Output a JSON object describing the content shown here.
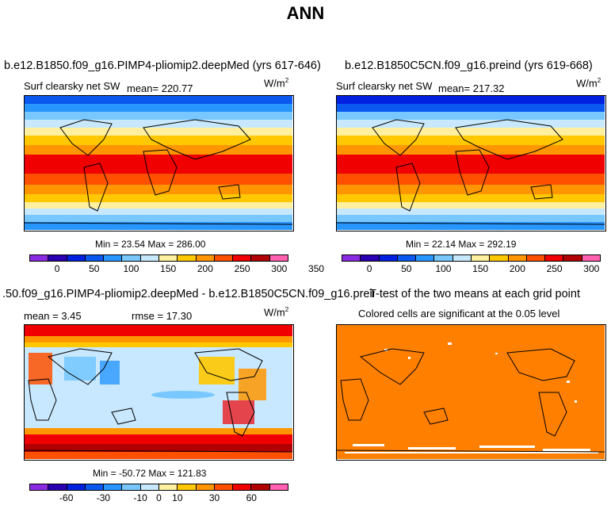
{
  "title": "ANN",
  "units": "W/m",
  "units_sup": "2",
  "panels": {
    "top_left": {
      "title": "b.e12.B1850.f09_g16.PIMP4-pliomip2.deepMed (yrs 617-646)",
      "variable": "Surf clearsky net SW",
      "mean_label": "mean= 220.77",
      "minmax": "Min =  23.54 Max = 286.00"
    },
    "top_right": {
      "title": "b.e12.B1850C5CN.f09_g16.preind (yrs 619-668)",
      "variable": "Surf clearsky net SW",
      "mean_label": "mean= 217.32",
      "minmax": "Min =  22.14 Max = 292.19"
    },
    "bottom_left": {
      "title": ".50.f09_g16.PIMP4-pliomip2.deepMed - b.e12.B1850C5CN.f09_g16.preind",
      "mean_label": "mean =    3.45",
      "rmse_label": "rmse =  17.30",
      "minmax": "Min = -50.72 Max = 121.83"
    },
    "bottom_right": {
      "title": "T-test of the two means at each grid point",
      "subtitle": "Colored cells are significant at the 0.05 level"
    }
  },
  "colorbar_abs": {
    "colors": [
      "#8a2be2",
      "#2a00b0",
      "#0020e0",
      "#0a58f0",
      "#2896ff",
      "#78c8ff",
      "#c8e8ff",
      "#fff0a0",
      "#ffc800",
      "#ff9600",
      "#ff5000",
      "#f00000",
      "#b00000",
      "#ff60b0"
    ],
    "tick_labels": [
      "0",
      "50",
      "100",
      "150",
      "200",
      "250",
      "300",
      "350"
    ],
    "tick_positions": [
      1.5,
      3.5,
      5.5,
      7.5,
      9.5,
      11.5,
      13.5,
      15.5
    ]
  },
  "colorbar_diff": {
    "colors": [
      "#8a2be2",
      "#2a00b0",
      "#0020e0",
      "#0a58f0",
      "#2896ff",
      "#78c8ff",
      "#c8e8ff",
      "#fff0a0",
      "#ffc800",
      "#ff9600",
      "#ff5000",
      "#f00000",
      "#b00000",
      "#ff60b0"
    ],
    "tick_labels": [
      "-60",
      "-30",
      "-10",
      "0",
      "10",
      "30",
      "60"
    ],
    "tick_positions": [
      2,
      4,
      6,
      7,
      8,
      10,
      12
    ]
  },
  "chart_data": [
    {
      "type": "heatmap",
      "title": "b.e12.B1850.f09_g16.PIMP4-pliomip2.deepMed (yrs 617-646)",
      "variable": "Surf clearsky net SW",
      "units": "W/m2",
      "mean": 220.77,
      "min": 23.54,
      "max": 286.0,
      "levels": [
        0,
        25,
        50,
        75,
        100,
        125,
        150,
        175,
        200,
        225,
        250,
        275,
        300,
        325,
        350
      ],
      "field": "zonal bands: ~280 tropics, ~220 subtropics, ~120 high latitudes, ~40 polar"
    },
    {
      "type": "heatmap",
      "title": "b.e12.B1850C5CN.f09_g16.preind (yrs 619-668)",
      "variable": "Surf clearsky net SW",
      "units": "W/m2",
      "mean": 217.32,
      "min": 22.14,
      "max": 292.19,
      "levels": [
        0,
        25,
        50,
        75,
        100,
        125,
        150,
        175,
        200,
        225,
        250,
        275,
        300,
        325,
        350
      ]
    },
    {
      "type": "heatmap",
      "title": ".50.f09_g16.PIMP4-pliomip2.deepMed - b.e12.B1850C5CN.f09_g16.preind",
      "units": "W/m2",
      "mean": 3.45,
      "rmse": 17.3,
      "min": -50.72,
      "max": 121.83,
      "levels": [
        -60,
        -45,
        -30,
        -20,
        -10,
        -5,
        0,
        5,
        10,
        20,
        30,
        45,
        60
      ]
    },
    {
      "type": "heatmap",
      "title": "T-test of the two means at each grid point",
      "subtitle": "Colored cells are significant at the 0.05 level",
      "significance_level": 0.05
    }
  ]
}
